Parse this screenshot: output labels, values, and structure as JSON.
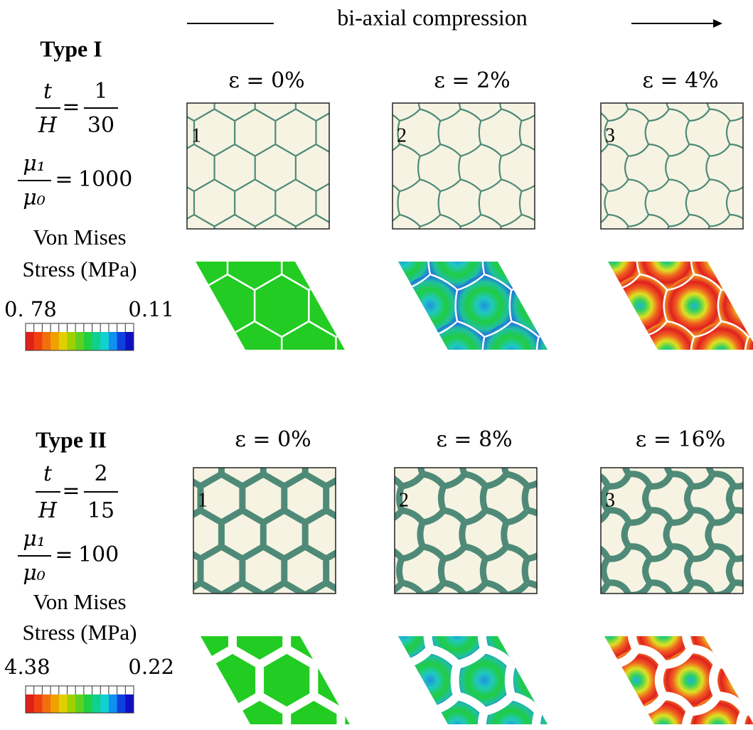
{
  "header": {
    "label": "bi-axial compression"
  },
  "sections": [
    {
      "title": "Type I",
      "ratio_thickness": {
        "lhs_num": "t",
        "lhs_den": "H",
        "rhs_num": "1",
        "rhs_den": "30"
      },
      "ratio_modulus": {
        "lhs_num": "μ₁",
        "lhs_den": "μ₀",
        "rhs": "1000"
      },
      "stress_label": [
        "Von Mises",
        "Stress (MPa)"
      ],
      "colorbar": {
        "left": "0. 78",
        "right": "0.11"
      },
      "panels": [
        {
          "strain": "ε = 0%",
          "number": "1"
        },
        {
          "strain": "ε = 2%",
          "number": "2"
        },
        {
          "strain": "ε = 4%",
          "number": "3"
        }
      ]
    },
    {
      "title": "Type II",
      "ratio_thickness": {
        "lhs_num": "t",
        "lhs_den": "H",
        "rhs_num": "2",
        "rhs_den": "15"
      },
      "ratio_modulus": {
        "lhs_num": "μ₁",
        "lhs_den": "μ₀",
        "rhs": "100"
      },
      "stress_label": [
        "Von Mises",
        "Stress (MPa)"
      ],
      "colorbar": {
        "left": "4.38",
        "right": "0.22"
      },
      "panels": [
        {
          "strain": "ε = 0%",
          "number": "1"
        },
        {
          "strain": "ε = 8%",
          "number": "2"
        },
        {
          "strain": "ε = 16%",
          "number": "3"
        }
      ]
    }
  ]
}
